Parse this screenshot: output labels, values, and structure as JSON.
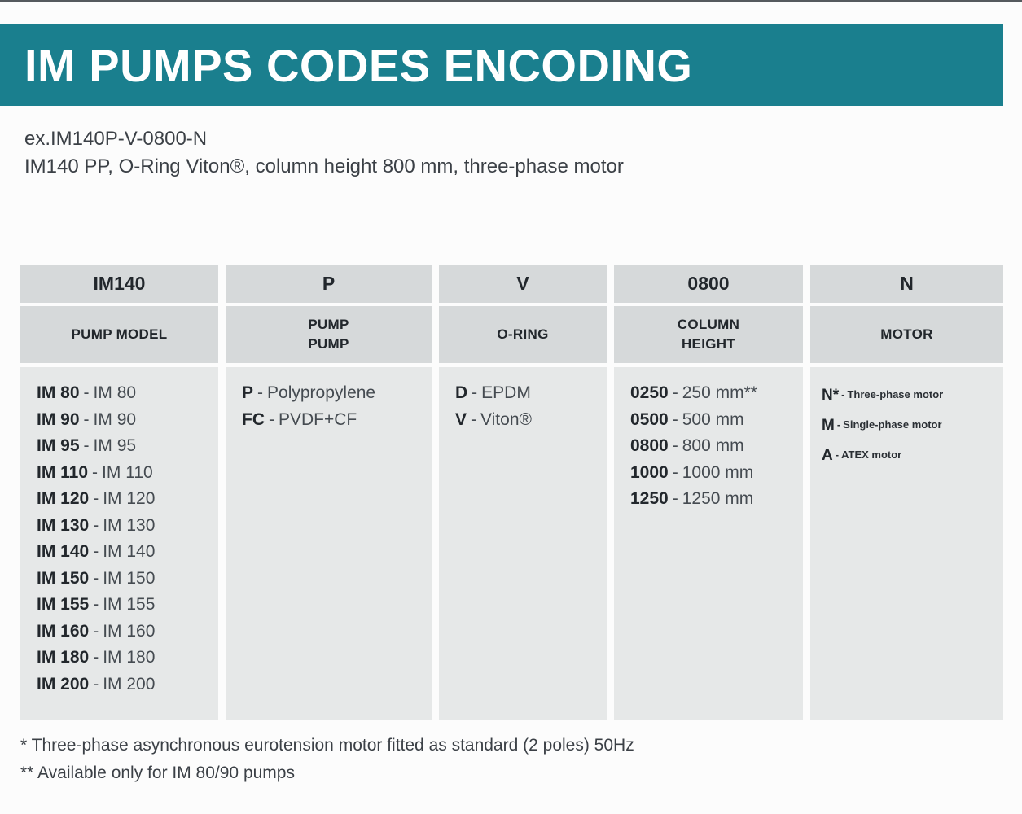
{
  "page": {
    "title": "IM PUMPS CODES ENCODING",
    "example_code": "ex.IM140P-V-0800-N",
    "example_description": "IM140 PP, O-Ring Viton®, column height 800 mm, three-phase motor",
    "footnotes": [
      "* Three-phase asynchronous eurotension motor fitted as standard (2 poles) 50Hz",
      "** Available only for IM 80/90 pumps"
    ]
  },
  "colors": {
    "accent_teal": "#1a7f8e",
    "header_gray": "#d6d9da",
    "body_gray": "#e6e8e8",
    "text_dark": "#22272c"
  },
  "table": {
    "separator": "-",
    "columns": [
      {
        "code": "IM140",
        "header": "PUMP MODEL",
        "entries": [
          {
            "code": "IM 80",
            "desc": "IM 80"
          },
          {
            "code": "IM 90",
            "desc": "IM 90"
          },
          {
            "code": "IM 95",
            "desc": "IM 95"
          },
          {
            "code": "IM 110",
            "desc": "IM 110"
          },
          {
            "code": "IM 120",
            "desc": "IM 120"
          },
          {
            "code": "IM 130",
            "desc": "IM 130"
          },
          {
            "code": "IM 140",
            "desc": "IM 140"
          },
          {
            "code": "IM 150",
            "desc": "IM 150"
          },
          {
            "code": "IM 155",
            "desc": "IM 155"
          },
          {
            "code": "IM 160",
            "desc": "IM 160"
          },
          {
            "code": "IM 180",
            "desc": "IM 180"
          },
          {
            "code": "IM 200",
            "desc": "IM 200"
          }
        ]
      },
      {
        "code": "P",
        "header": "PUMP\nPUMP",
        "entries": [
          {
            "code": "P",
            "desc": "Polypropylene"
          },
          {
            "code": "FC",
            "desc": "PVDF+CF"
          }
        ]
      },
      {
        "code": "V",
        "header": "O-RING",
        "entries": [
          {
            "code": "D",
            "desc": "EPDM"
          },
          {
            "code": "V",
            "desc": "Viton®"
          }
        ]
      },
      {
        "code": "0800",
        "header": "COLUMN\nHEIGHT",
        "entries": [
          {
            "code": "0250",
            "desc": "250 mm**"
          },
          {
            "code": "0500",
            "desc": "500 mm"
          },
          {
            "code": "0800",
            "desc": "800 mm"
          },
          {
            "code": "1000",
            "desc": "1000 mm"
          },
          {
            "code": "1250",
            "desc": "1250 mm"
          }
        ]
      },
      {
        "code": "N",
        "header": "MOTOR",
        "entries": [
          {
            "code": "N*",
            "desc": "Three-phase motor"
          },
          {
            "code": "M",
            "desc": "Single-phase motor"
          },
          {
            "code": "A",
            "desc": "ATEX motor"
          }
        ]
      }
    ]
  }
}
